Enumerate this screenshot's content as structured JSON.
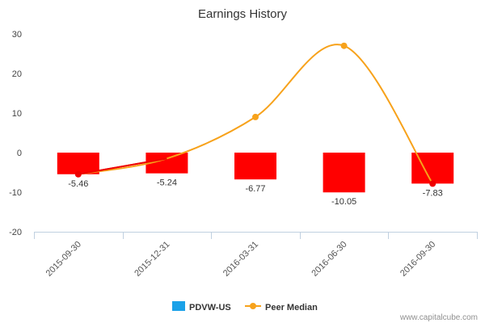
{
  "chart_data": {
    "type": "bar",
    "title": "Earnings History",
    "categories": [
      "2015-09-30",
      "2015-12-31",
      "2016-03-31",
      "2016-06-30",
      "2016-09-30"
    ],
    "ylim": [
      -20,
      30
    ],
    "yticks": [
      30,
      20,
      10,
      0,
      -10,
      -20
    ],
    "grid": false,
    "legend_position": "bottom-center",
    "series": [
      {
        "name": "PDVW-US",
        "kind": "bar",
        "legend_color": "#1aa1e8",
        "bar_color": "#ff0000",
        "values": [
          -5.46,
          -5.24,
          -6.77,
          -10.05,
          -7.83
        ],
        "labels": [
          "-5.46",
          "-5.24",
          "-6.77",
          "-10.05",
          "-7.83"
        ]
      },
      {
        "name": "Peer Median",
        "kind": "line",
        "color": "#f7a21b",
        "values": [
          -5.46,
          -1.5,
          9.0,
          27.0,
          -7.83
        ]
      }
    ],
    "actual_line_color": "#ee0000"
  },
  "credit": "www.capitalcube.com"
}
